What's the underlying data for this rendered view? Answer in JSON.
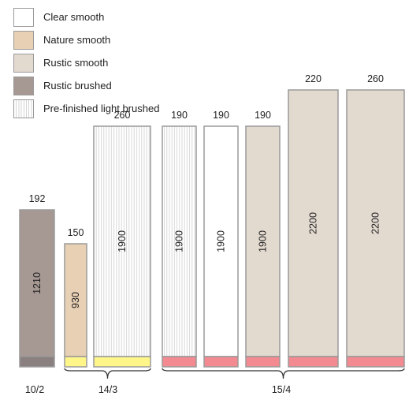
{
  "legend": [
    {
      "key": "clear",
      "label": "Clear smooth",
      "color": "#ffffff"
    },
    {
      "key": "nature",
      "label": "Nature smooth",
      "color": "#e8d0b4"
    },
    {
      "key": "rustic",
      "label": "Rustic smooth",
      "color": "#e2d9cf"
    },
    {
      "key": "rusticBrushed",
      "label": "Rustic brushed",
      "color": "#a69893"
    },
    {
      "key": "prefinished",
      "label": "Pre-finished light brushed",
      "color": "#ffffff"
    }
  ],
  "colors": {
    "base_dark": "#8a8080",
    "base_yellow": "#fff68a",
    "base_pink": "#f48a91",
    "border": "#9a9a9a",
    "stripe": "#d4d4d4"
  },
  "planks": [
    {
      "width": "192",
      "length": "1210",
      "finish": "rusticBrushed",
      "base": "dark",
      "group": "10/2"
    },
    {
      "width": "150",
      "length": "930",
      "finish": "nature",
      "base": "yellow",
      "group": "14/3"
    },
    {
      "width": "260",
      "length": "1900",
      "finish": "prefinished",
      "base": "yellow",
      "group": "14/3"
    },
    {
      "width": "190",
      "length": "1900",
      "finish": "prefinished",
      "base": "pink",
      "group": "15/4"
    },
    {
      "width": "190",
      "length": "1900",
      "finish": "clear",
      "base": "pink",
      "group": "15/4"
    },
    {
      "width": "190",
      "length": "1900",
      "finish": "rustic",
      "base": "pink",
      "group": "15/4"
    },
    {
      "width": "220",
      "length": "2200",
      "finish": "rustic",
      "base": "pink",
      "group": "15/4"
    },
    {
      "width": "260",
      "length": "2200",
      "finish": "rustic",
      "base": "pink",
      "group": "15/4"
    }
  ],
  "groups": [
    "10/2",
    "14/3",
    "15/4"
  ]
}
